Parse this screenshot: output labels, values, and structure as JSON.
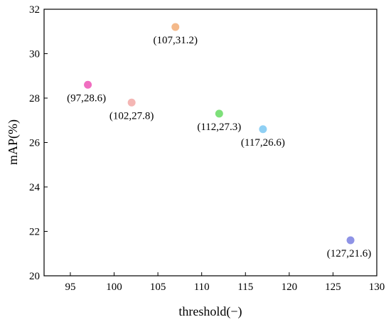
{
  "chart_data": {
    "type": "scatter",
    "title": "",
    "xlabel": "threshold(−)",
    "ylabel": "mAP(%)",
    "xlim": [
      92,
      130
    ],
    "ylim": [
      20,
      32
    ],
    "xticks": [
      95,
      100,
      105,
      110,
      115,
      120,
      125,
      130
    ],
    "yticks": [
      20,
      22,
      24,
      26,
      28,
      30,
      32
    ],
    "grid": false,
    "legend": "none",
    "points": [
      {
        "x": 97,
        "y": 28.6,
        "label": "(97,28.6)",
        "color": "#f06ec0",
        "label_pos": "below-left"
      },
      {
        "x": 102,
        "y": 27.8,
        "label": "(102,27.8)",
        "color": "#f4b6b4",
        "label_pos": "below"
      },
      {
        "x": 107,
        "y": 31.2,
        "label": "(107,31.2)",
        "color": "#f4b98a",
        "label_pos": "below"
      },
      {
        "x": 112,
        "y": 27.3,
        "label": "(112,27.3)",
        "color": "#7ee07a",
        "label_pos": "below"
      },
      {
        "x": 117,
        "y": 26.6,
        "label": "(117,26.6)",
        "color": "#8fd0f4",
        "label_pos": "below"
      },
      {
        "x": 127,
        "y": 21.6,
        "label": "(127,21.6)",
        "color": "#8e93e6",
        "label_pos": "below-left"
      }
    ]
  }
}
